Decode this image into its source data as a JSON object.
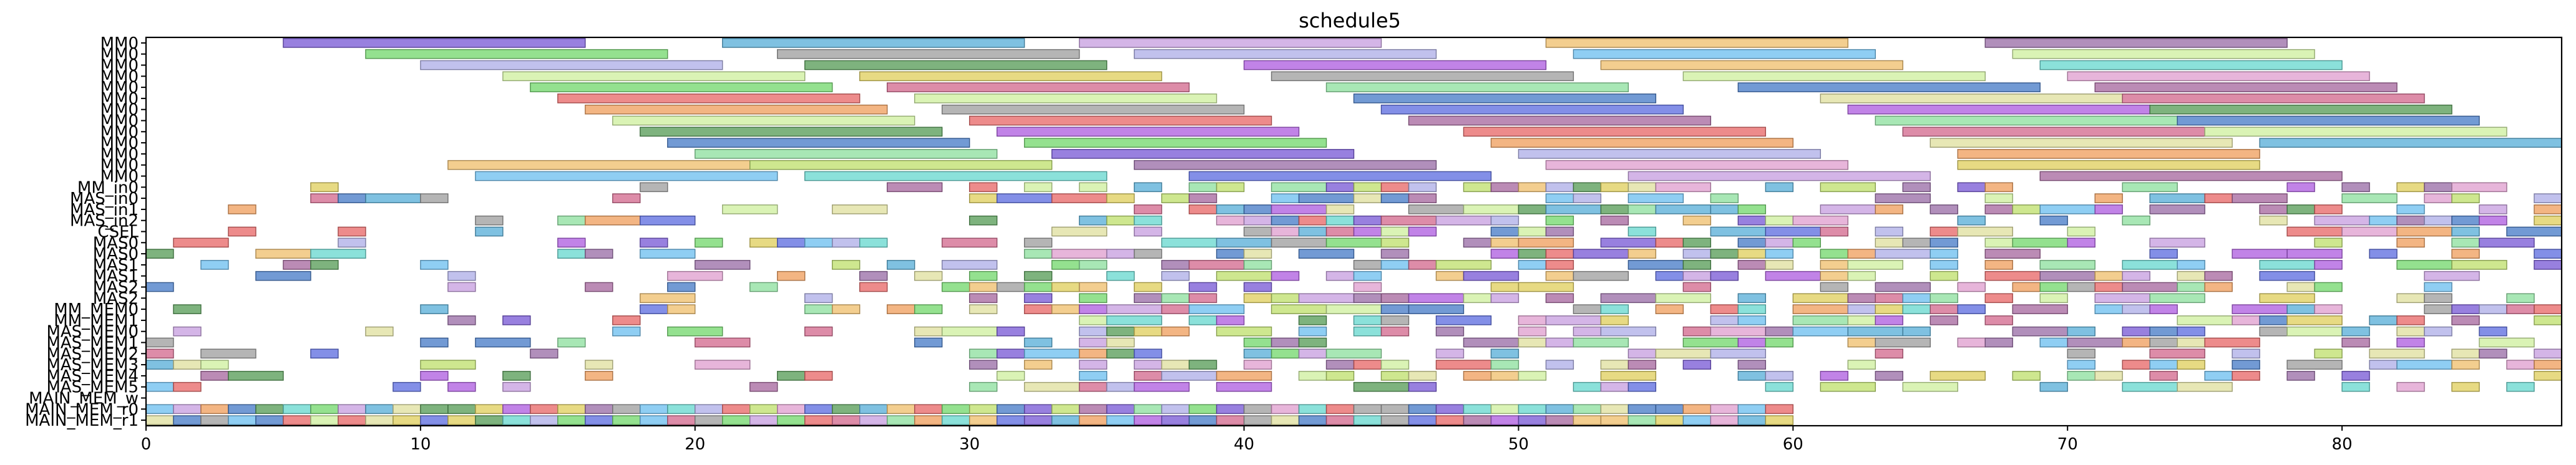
{
  "chart_data": {
    "type": "gantt",
    "title": "schedule5",
    "xlabel": "",
    "ylabel": "",
    "xlim": [
      0,
      88
    ],
    "xticks": [
      0,
      10,
      20,
      30,
      40,
      50,
      60,
      70,
      80
    ],
    "grid": false,
    "legend": "none",
    "rows": [
      "MM0",
      "MM0",
      "MM0",
      "MM0",
      "MM0",
      "MM0",
      "MM0",
      "MM0",
      "MM0",
      "MM0",
      "MM0",
      "MM0",
      "MM0",
      "MM_in0",
      "MAS_in0",
      "MAS_in1",
      "MAS_in2",
      "CSEL",
      "MAS0",
      "MAS0",
      "MAS1",
      "MAS1",
      "MAS2",
      "MAS2",
      "MM_MEM0",
      "MM_MEM1",
      "MAS_MEM0",
      "MAS_MEM1",
      "MAS_MEM2",
      "MAS_MEM3",
      "MAS_MEM4",
      "MAS_MEM5",
      "MAIN_MEM_w",
      "MAIN_MEM_r0",
      "MAIN_MEM_r1"
    ],
    "palette": [
      "#7b5cd6",
      "#76d86f",
      "#5bb0d8",
      "#c8a0e0",
      "#f0c070",
      "#9b6fa8",
      "#8fe0a0",
      "#a86aa0",
      "#d46b8f",
      "#4a7ec8",
      "#c0e070",
      "#e86a6a",
      "#6ad8d0",
      "#e0a0d0",
      "#b0b0e8",
      "#5a9e5a",
      "#e0d060",
      "#a0a0a0",
      "#6070e0",
      "#f0a060",
      "#d0f0a0",
      "#70c0f0",
      "#b060e0",
      "#e0e0a0"
    ],
    "tasks": [
      {
        "row": 0,
        "start": 5,
        "end": 16,
        "c": 0
      },
      {
        "row": 0,
        "start": 21,
        "end": 32,
        "c": 2
      },
      {
        "row": 0,
        "start": 34,
        "end": 45,
        "c": 3
      },
      {
        "row": 0,
        "start": 51,
        "end": 62,
        "c": 4
      },
      {
        "row": 0,
        "start": 67,
        "end": 78,
        "c": 5
      },
      {
        "row": 1,
        "start": 8,
        "end": 19,
        "c": 1
      },
      {
        "row": 1,
        "start": 23,
        "end": 34,
        "c": 17
      },
      {
        "row": 1,
        "start": 36,
        "end": 47,
        "c": 14
      },
      {
        "row": 1,
        "start": 52,
        "end": 63,
        "c": 21
      },
      {
        "row": 1,
        "start": 68,
        "end": 79,
        "c": 20
      },
      {
        "row": 2,
        "start": 10,
        "end": 21,
        "c": 14
      },
      {
        "row": 2,
        "start": 24,
        "end": 35,
        "c": 15
      },
      {
        "row": 2,
        "start": 40,
        "end": 51,
        "c": 22
      },
      {
        "row": 2,
        "start": 53,
        "end": 64,
        "c": 4
      },
      {
        "row": 2,
        "start": 69,
        "end": 80,
        "c": 12
      },
      {
        "row": 3,
        "start": 13,
        "end": 24,
        "c": 20
      },
      {
        "row": 3,
        "start": 26,
        "end": 37,
        "c": 16
      },
      {
        "row": 3,
        "start": 41,
        "end": 52,
        "c": 17
      },
      {
        "row": 3,
        "start": 56,
        "end": 67,
        "c": 20
      },
      {
        "row": 3,
        "start": 70,
        "end": 81,
        "c": 13
      },
      {
        "row": 4,
        "start": 14,
        "end": 25,
        "c": 1
      },
      {
        "row": 4,
        "start": 27,
        "end": 38,
        "c": 8
      },
      {
        "row": 4,
        "start": 43,
        "end": 54,
        "c": 6
      },
      {
        "row": 4,
        "start": 58,
        "end": 69,
        "c": 9
      },
      {
        "row": 4,
        "start": 71,
        "end": 82,
        "c": 7
      },
      {
        "row": 5,
        "start": 15,
        "end": 26,
        "c": 11
      },
      {
        "row": 5,
        "start": 28,
        "end": 39,
        "c": 20
      },
      {
        "row": 5,
        "start": 44,
        "end": 55,
        "c": 9
      },
      {
        "row": 5,
        "start": 61,
        "end": 72,
        "c": 23
      },
      {
        "row": 5,
        "start": 72,
        "end": 83,
        "c": 8
      },
      {
        "row": 6,
        "start": 16,
        "end": 27,
        "c": 19
      },
      {
        "row": 6,
        "start": 29,
        "end": 40,
        "c": 17
      },
      {
        "row": 6,
        "start": 45,
        "end": 56,
        "c": 18
      },
      {
        "row": 6,
        "start": 62,
        "end": 73,
        "c": 22
      },
      {
        "row": 6,
        "start": 73,
        "end": 84,
        "c": 15
      },
      {
        "row": 7,
        "start": 17,
        "end": 28,
        "c": 20
      },
      {
        "row": 7,
        "start": 30,
        "end": 41,
        "c": 11
      },
      {
        "row": 7,
        "start": 46,
        "end": 57,
        "c": 7
      },
      {
        "row": 7,
        "start": 63,
        "end": 74,
        "c": 6
      },
      {
        "row": 7,
        "start": 74,
        "end": 85,
        "c": 9
      },
      {
        "row": 8,
        "start": 18,
        "end": 29,
        "c": 15
      },
      {
        "row": 8,
        "start": 31,
        "end": 42,
        "c": 22
      },
      {
        "row": 8,
        "start": 48,
        "end": 59,
        "c": 11
      },
      {
        "row": 8,
        "start": 64,
        "end": 75,
        "c": 8
      },
      {
        "row": 8,
        "start": 75,
        "end": 86,
        "c": 20
      },
      {
        "row": 9,
        "start": 19,
        "end": 30,
        "c": 9
      },
      {
        "row": 9,
        "start": 32,
        "end": 43,
        "c": 1
      },
      {
        "row": 9,
        "start": 49,
        "end": 60,
        "c": 19
      },
      {
        "row": 9,
        "start": 65,
        "end": 76,
        "c": 23
      },
      {
        "row": 9,
        "start": 77,
        "end": 88,
        "c": 2
      },
      {
        "row": 10,
        "start": 20,
        "end": 31,
        "c": 6
      },
      {
        "row": 10,
        "start": 33,
        "end": 44,
        "c": 0
      },
      {
        "row": 10,
        "start": 50,
        "end": 61,
        "c": 14
      },
      {
        "row": 10,
        "start": 66,
        "end": 77,
        "c": 19
      },
      {
        "row": 11,
        "start": 11,
        "end": 22,
        "c": 4
      },
      {
        "row": 11,
        "start": 22,
        "end": 33,
        "c": 10
      },
      {
        "row": 11,
        "start": 36,
        "end": 47,
        "c": 5
      },
      {
        "row": 11,
        "start": 51,
        "end": 62,
        "c": 13
      },
      {
        "row": 11,
        "start": 66,
        "end": 77,
        "c": 16
      },
      {
        "row": 12,
        "start": 12,
        "end": 23,
        "c": 21
      },
      {
        "row": 12,
        "start": 24,
        "end": 35,
        "c": 12
      },
      {
        "row": 12,
        "start": 38,
        "end": 49,
        "c": 18
      },
      {
        "row": 12,
        "start": 54,
        "end": 65,
        "c": 3
      },
      {
        "row": 12,
        "start": 69,
        "end": 80,
        "c": 7
      }
    ],
    "bus_rows_start": 13,
    "bus_rows_end": 34,
    "bus_block_width": 1,
    "bus_extent_x": 88,
    "dense_extent_x": 60
  }
}
